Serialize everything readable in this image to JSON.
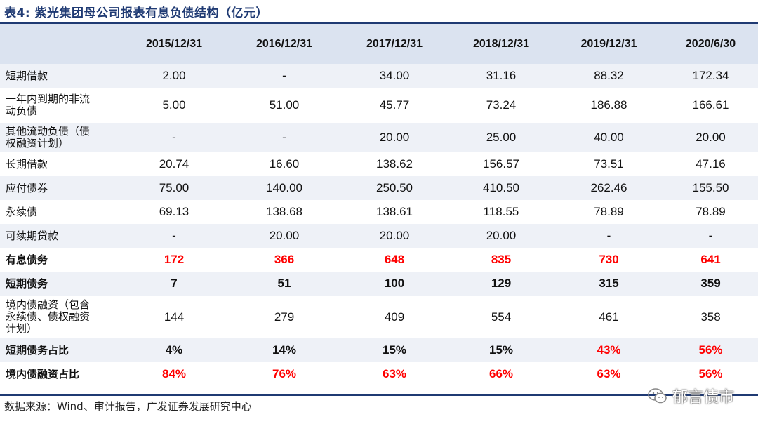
{
  "title": "表4:  紫光集团母公司报表有息负债结构（亿元）",
  "header": [
    "",
    "2015/12/31",
    "2016/12/31",
    "2017/12/31",
    "2018/12/31",
    "2019/12/31",
    "2020/6/30"
  ],
  "rows": [
    {
      "label": "短期借款",
      "values": [
        "2.00",
        "-",
        "34.00",
        "31.16",
        "88.32",
        "172.34"
      ],
      "h": 34,
      "stripe": true
    },
    {
      "label": "一年内到期的非流\n动负债",
      "values": [
        "5.00",
        "51.00",
        "45.77",
        "73.24",
        "186.88",
        "166.61"
      ],
      "h": 50,
      "stripe": false
    },
    {
      "label": "其他流动负债（债\n权融资计划）",
      "values": [
        "-",
        "-",
        "20.00",
        "25.00",
        "40.00",
        "20.00"
      ],
      "h": 42,
      "stripe": true
    },
    {
      "label": "长期借款",
      "values": [
        "20.74",
        "16.60",
        "138.62",
        "156.57",
        "73.51",
        "47.16"
      ],
      "h": 34,
      "stripe": false
    },
    {
      "label": "应付债券",
      "values": [
        "75.00",
        "140.00",
        "250.50",
        "410.50",
        "262.46",
        "155.50"
      ],
      "h": 34,
      "stripe": true
    },
    {
      "label": "永续债",
      "values": [
        "69.13",
        "138.68",
        "138.61",
        "118.55",
        "78.89",
        "78.89"
      ],
      "h": 34,
      "stripe": false
    },
    {
      "label": "可续期贷款",
      "values": [
        "-",
        "20.00",
        "20.00",
        "20.00",
        "-",
        "-"
      ],
      "h": 34,
      "stripe": true
    },
    {
      "label": "有息债务",
      "values": [
        "172",
        "366",
        "648",
        "835",
        "730",
        "641"
      ],
      "h": 34,
      "stripe": false,
      "bold": true,
      "red": [
        true,
        true,
        true,
        true,
        true,
        true
      ]
    },
    {
      "label": "短期债务",
      "values": [
        "7",
        "51",
        "100",
        "129",
        "315",
        "359"
      ],
      "h": 34,
      "stripe": true,
      "bold": true
    },
    {
      "label": "境内债融资（包含\n永续债、债权融资\n计划）",
      "values": [
        "144",
        "279",
        "409",
        "554",
        "461",
        "358"
      ],
      "h": 61,
      "stripe": false
    },
    {
      "label": "短期债务占比",
      "values": [
        "4%",
        "14%",
        "15%",
        "15%",
        "43%",
        "56%"
      ],
      "h": 34,
      "stripe": true,
      "bold": true,
      "red": [
        false,
        false,
        false,
        false,
        true,
        true
      ]
    },
    {
      "label": "境内债融资占比",
      "values": [
        "84%",
        "76%",
        "63%",
        "66%",
        "63%",
        "56%"
      ],
      "h": 34,
      "stripe": false,
      "bold": true,
      "red": [
        true,
        true,
        true,
        true,
        true,
        true
      ]
    }
  ],
  "source": "数据来源：Wind、审计报告，广发证券发展研究中心",
  "watermark": "郁言债市",
  "colors": {
    "accent": "#1f3a73",
    "header_bg": "#dbe3f0",
    "stripe_bg": "#eef1f7",
    "highlight": "#ff0000"
  }
}
